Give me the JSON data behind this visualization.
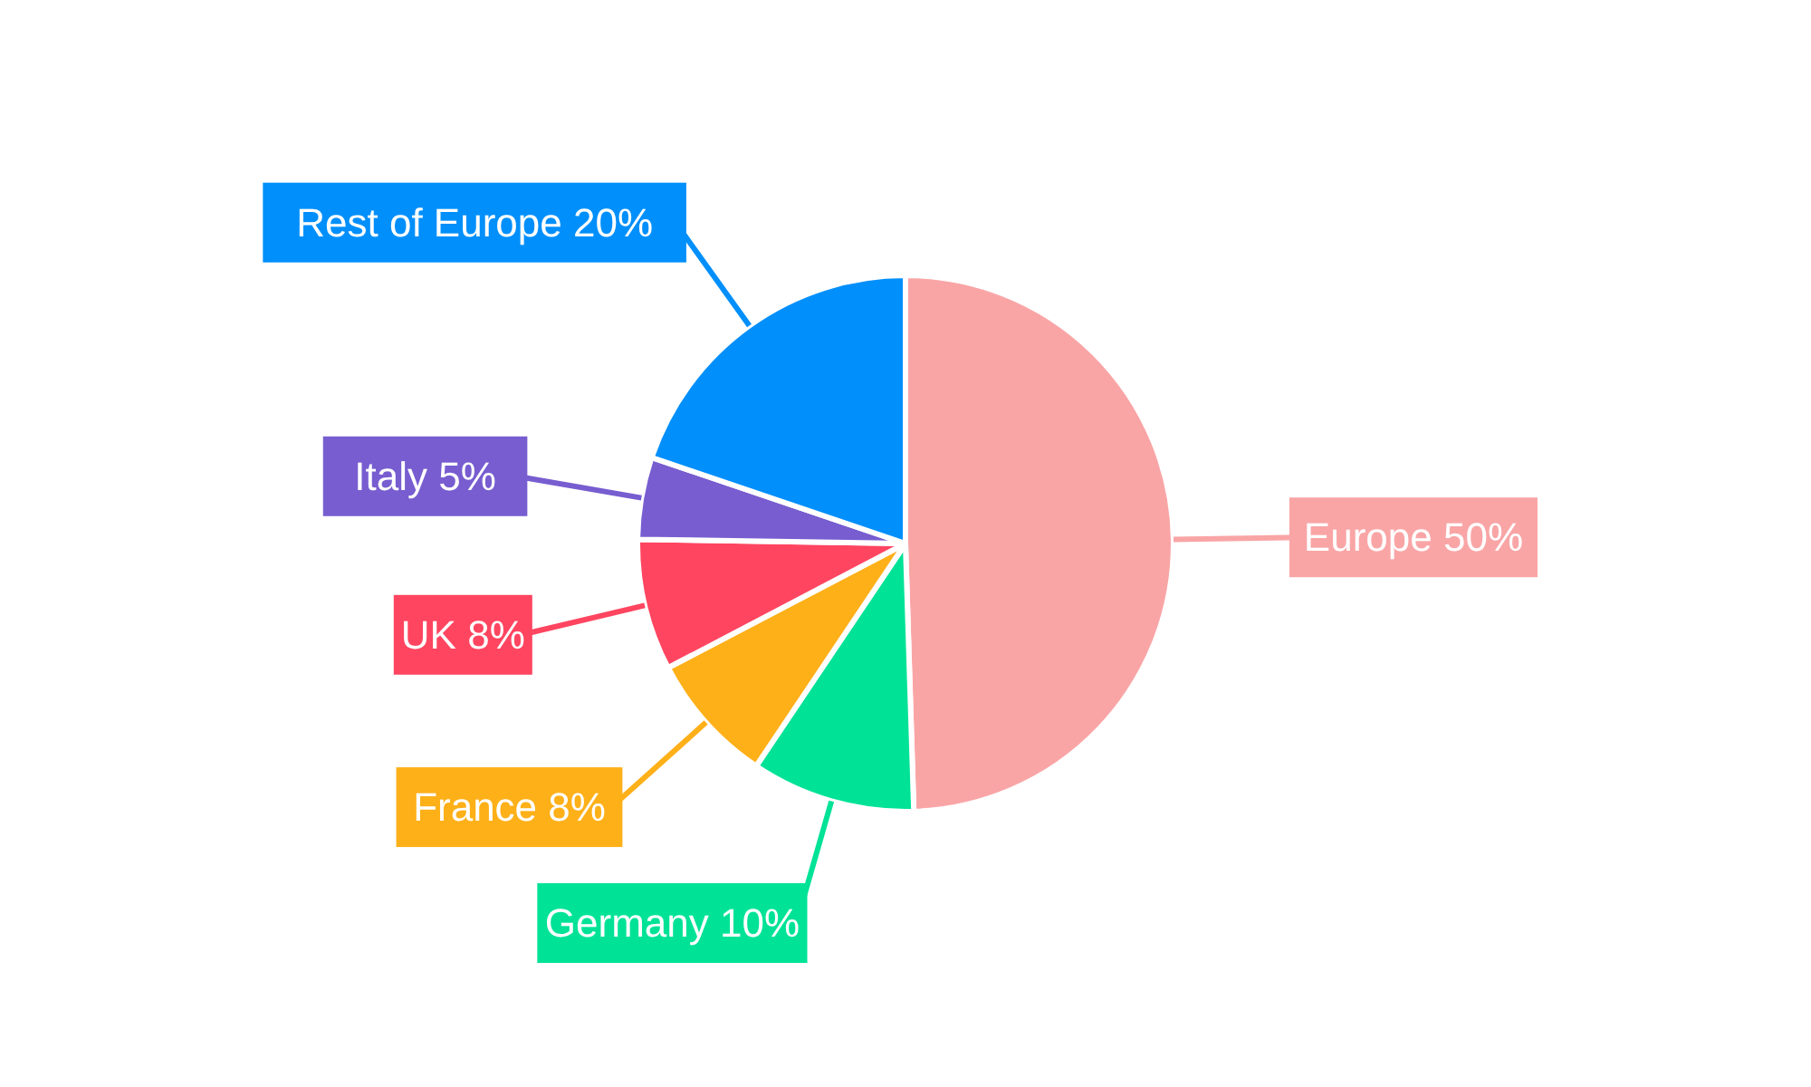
{
  "chart_data": {
    "type": "pie",
    "categories": [
      "Europe",
      "Germany",
      "France",
      "UK",
      "Italy",
      "Rest of Europe"
    ],
    "values": [
      50,
      10,
      8,
      8,
      5,
      20
    ],
    "colors": [
      "#f9a5a6",
      "#00e396",
      "#feb019",
      "#ff4560",
      "#775dd0",
      "#008ffb"
    ],
    "value_labels": [
      "50%",
      "10%",
      "8%",
      "8%",
      "5%",
      "20%"
    ]
  }
}
